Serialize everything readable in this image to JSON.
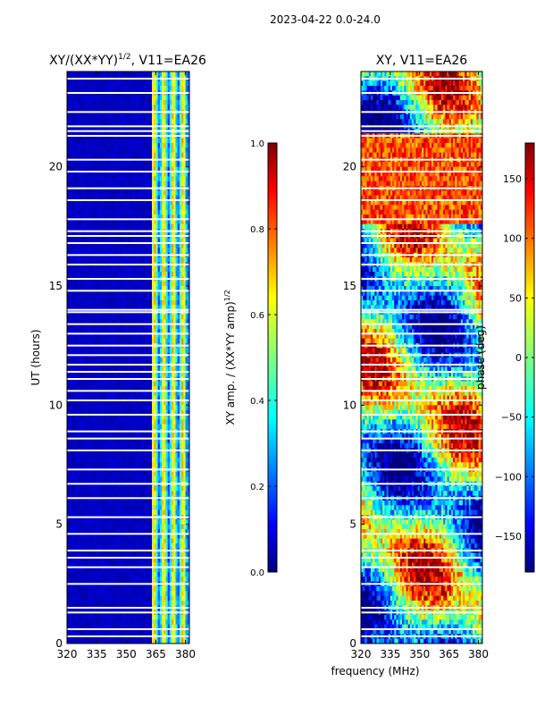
{
  "figure_title": "2023-04-22 0.0-24.0",
  "colors": {
    "jet": [
      "#00007f",
      "#0000ff",
      "#007fff",
      "#00ffff",
      "#7fff7f",
      "#ffff00",
      "#ff7f00",
      "#ff0000",
      "#7f0000"
    ]
  },
  "chart_data": [
    {
      "type": "heatmap",
      "title_main": "XY/(XX*YY)",
      "title_sup": "1/2",
      "title_rest": ", V11=EA26",
      "xlabel": "",
      "ylabel": "UT (hours)",
      "xlim": [
        320,
        382
      ],
      "ylim": [
        0,
        24
      ],
      "xticks": [
        320,
        335,
        350,
        365,
        380
      ],
      "yticks": [
        0,
        5,
        10,
        15,
        20
      ],
      "description": "low amplitude (~0.05) for 320-363 MHz, ~0.3-0.6 for 363-382 MHz in vertical channel bands",
      "gap_rows_hours": [
        0.3,
        0.6,
        1.3,
        1.5,
        2.5,
        3.2,
        3.6,
        3.9,
        4.6,
        5.3,
        6.1,
        6.7,
        7.3,
        8.1,
        8.6,
        8.9,
        9.6,
        10.2,
        10.6,
        11.1,
        11.4,
        11.7,
        12.1,
        12.5,
        13.0,
        13.4,
        13.9,
        14.0,
        14.8,
        15.3,
        15.9,
        16.3,
        16.8,
        17.1,
        17.3,
        17.8,
        18.6,
        19.1,
        19.8,
        20.3,
        21.3,
        21.5,
        21.7,
        22.3,
        23.1,
        23.7
      ]
    },
    {
      "type": "heatmap",
      "title": "XY, V11=EA26",
      "xlabel": "frequency (MHz)",
      "ylabel": "",
      "xlim": [
        320,
        382
      ],
      "ylim": [
        0,
        24
      ],
      "xticks": [
        320,
        335,
        350,
        365,
        380
      ],
      "yticks": [
        0,
        5,
        10,
        15,
        20
      ],
      "description": "phase in degrees, ranging -180 to 180",
      "gap_rows_hours": [
        0.3,
        0.6,
        1.3,
        1.5,
        2.5,
        3.2,
        3.6,
        3.9,
        4.6,
        5.3,
        6.1,
        6.7,
        7.3,
        8.1,
        8.6,
        8.9,
        9.6,
        10.2,
        10.6,
        11.1,
        11.4,
        11.7,
        12.1,
        12.5,
        13.0,
        13.4,
        13.9,
        14.0,
        14.8,
        15.3,
        15.9,
        16.3,
        16.8,
        17.1,
        17.3,
        17.8,
        18.6,
        19.1,
        19.8,
        20.3,
        21.3,
        21.5,
        21.7,
        22.3,
        23.1,
        23.7
      ]
    }
  ],
  "colorbars": [
    {
      "label_main": "XY amp. / (XX*YY amp)",
      "label_sup": "1/2",
      "range": [
        0.0,
        1.0
      ],
      "ticks": [
        0.0,
        0.2,
        0.4,
        0.6,
        0.8,
        1.0
      ],
      "tick_labels": [
        "0.0",
        "0.2",
        "0.4",
        "0.6",
        "0.8",
        "1.0"
      ]
    },
    {
      "label": "phase (deg)",
      "range": [
        -180,
        180
      ],
      "ticks": [
        -150,
        -100,
        -50,
        0,
        50,
        100,
        150
      ],
      "tick_labels": [
        "−150",
        "−100",
        "−50",
        "0",
        "50",
        "100",
        "150"
      ]
    }
  ]
}
